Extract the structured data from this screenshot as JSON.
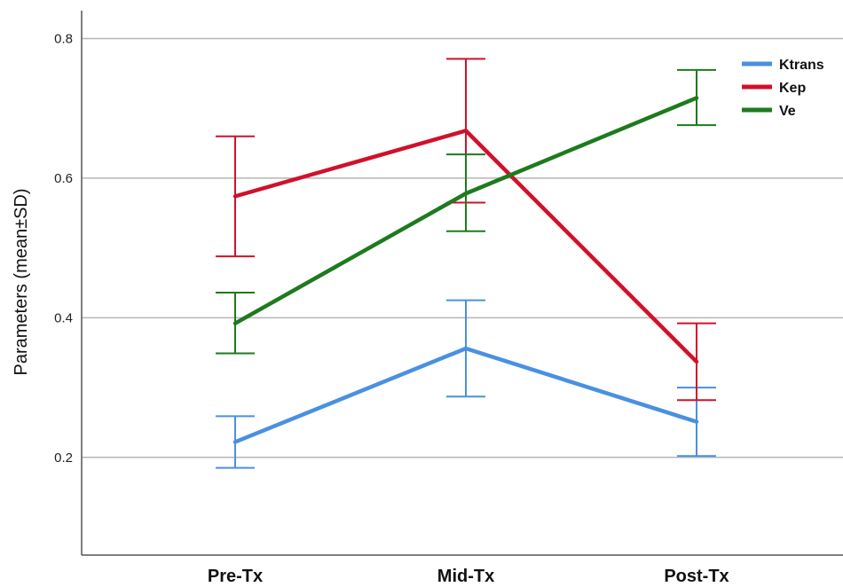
{
  "chart_data": {
    "type": "line",
    "title": "",
    "xlabel": "",
    "ylabel": "Parameters (mean±SD)",
    "categories": [
      "Pre-Tx",
      "Mid-Tx",
      "Post-Tx"
    ],
    "ylim": [
      0.06,
      0.84
    ],
    "yticks": [
      0.2,
      0.4,
      0.6,
      0.8
    ],
    "ytick_labels": [
      "0.2",
      "0.4",
      "0.6",
      "0.8"
    ],
    "grid": true,
    "legend_position": "top-right",
    "series": [
      {
        "name": "Ktrans",
        "color": "#4a90e2",
        "values": [
          0.222,
          0.356,
          0.251
        ],
        "err_low": [
          0.185,
          0.287,
          0.202
        ],
        "err_high": [
          0.259,
          0.425,
          0.3
        ]
      },
      {
        "name": "Kep",
        "color": "#d0112b",
        "values": [
          0.574,
          0.668,
          0.337
        ],
        "err_low": [
          0.488,
          0.565,
          0.282
        ],
        "err_high": [
          0.66,
          0.771,
          0.392
        ]
      },
      {
        "name": "Ve",
        "color": "#1e7a1e",
        "values": [
          0.392,
          0.578,
          0.715
        ],
        "err_low": [
          0.349,
          0.524,
          0.676
        ],
        "err_high": [
          0.436,
          0.634,
          0.755
        ]
      }
    ]
  }
}
